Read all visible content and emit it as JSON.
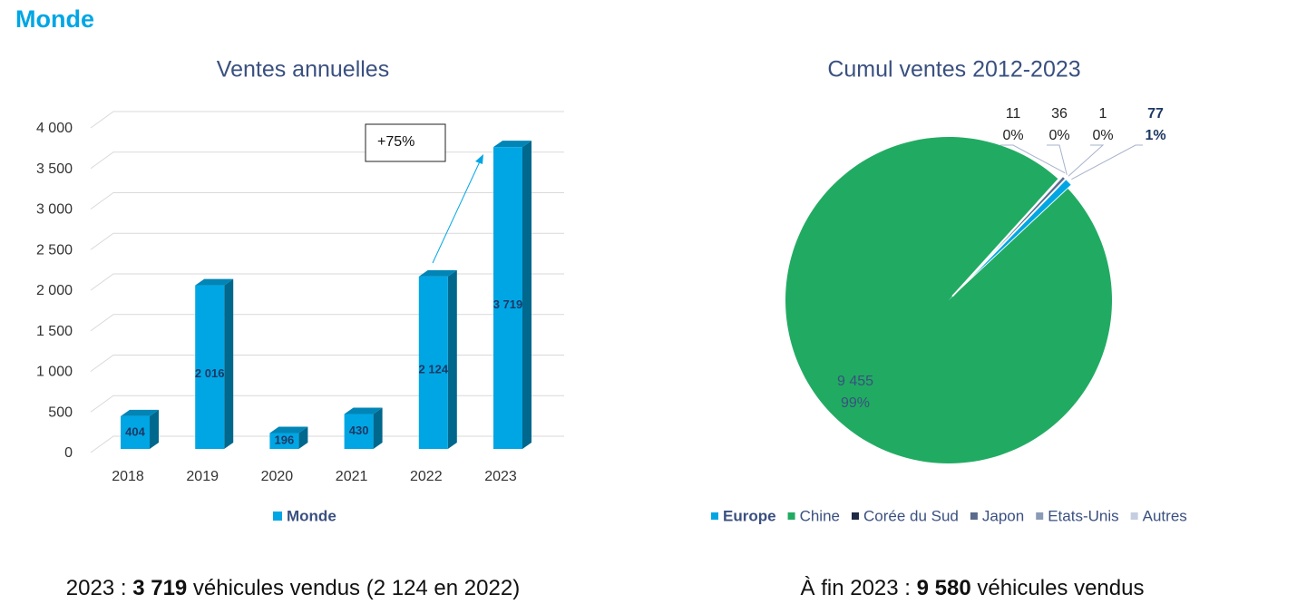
{
  "header": {
    "title": "Monde"
  },
  "chart_data": [
    {
      "type": "bar",
      "title": "Ventes annuelles",
      "categories": [
        "2018",
        "2019",
        "2020",
        "2021",
        "2022",
        "2023"
      ],
      "series": [
        {
          "name": "Monde",
          "color": "#00a6e4",
          "values": [
            404,
            2016,
            196,
            430,
            2124,
            3719
          ],
          "value_labels": [
            "404",
            "2 016",
            "196",
            "430",
            "2 124",
            "3 719"
          ]
        }
      ],
      "ylim": [
        0,
        4000
      ],
      "yticks": [
        0,
        500,
        {
          "value": 1000,
          "label": "1 000"
        },
        {
          "value": 1500,
          "label": "1 500"
        },
        {
          "value": 2000,
          "label": "2 000"
        },
        {
          "value": 2500,
          "label": "2 500"
        },
        {
          "value": 3000,
          "label": "3 000"
        },
        {
          "value": 3500,
          "label": "3 500"
        },
        {
          "value": 4000,
          "label": "4 000"
        }
      ],
      "grid": true,
      "legend": "bottom",
      "annotations": [
        {
          "text": "+75%"
        }
      ]
    },
    {
      "type": "pie",
      "title": "Cumul ventes 2012-2023",
      "series": [
        {
          "categories": [
            "Europe",
            "Chine",
            "Corée du Sud",
            "Japon",
            "Etats-Unis",
            "Autres"
          ],
          "colors": [
            "#00a6e4",
            "#21ab62",
            "#1f2a44",
            "#5a6b8c",
            "#8a9bb8",
            "#c5cde0"
          ],
          "values": [
            77,
            9455,
            11,
            36,
            1,
            0
          ],
          "value_labels": [
            "77",
            "9 455",
            "11",
            "36",
            "1",
            null
          ],
          "percent_labels": [
            "1%",
            "99%",
            "0%",
            "0%",
            "0%",
            null
          ]
        }
      ],
      "legend": "bottom"
    }
  ],
  "captions": [
    {
      "parts": [
        "2023 : ",
        "3 719",
        " véhicules vendus (2 124 en 2022)"
      ]
    },
    {
      "parts": [
        "À fin 2023 : ",
        "9 580",
        " véhicules vendus"
      ]
    }
  ]
}
